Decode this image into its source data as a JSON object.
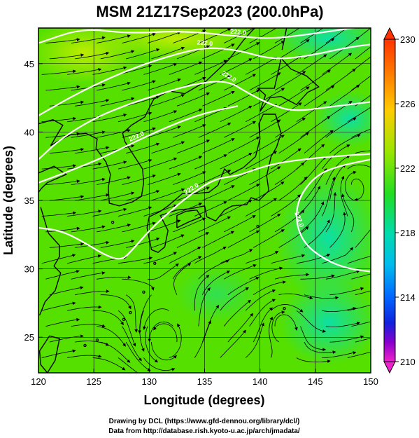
{
  "chart_data": {
    "type": "heatmap",
    "title": "MSM 21Z17Sep2023 (200.0hPa)",
    "xlabel": "Longitude (degrees)",
    "ylabel": "Latitude  (degrees)",
    "xlim": [
      120,
      150
    ],
    "ylim": [
      22.4,
      47.6
    ],
    "xticks": [
      "120",
      "125",
      "130",
      "135",
      "140",
      "145",
      "150"
    ],
    "xtick_values": [
      120,
      125,
      130,
      135,
      140,
      145,
      150
    ],
    "yticks": [
      "25",
      "30",
      "35",
      "40",
      "45"
    ],
    "ytick_values": [
      25,
      30,
      35,
      40,
      45
    ],
    "colorbar": {
      "min": 210,
      "max": 230,
      "ticks": [
        "230",
        "226",
        "222",
        "218",
        "214",
        "210"
      ],
      "tick_values": [
        230,
        226,
        222,
        218,
        214,
        210
      ]
    },
    "contours": [
      {
        "label": "222.0",
        "points": [
          [
            120,
            46.5
          ],
          [
            124,
            47.6
          ],
          [
            128,
            47.2
          ],
          [
            133,
            47.4
          ],
          [
            138,
            47.0
          ],
          [
            141,
            46.8
          ],
          [
            145,
            47.2
          ],
          [
            150,
            47.8
          ]
        ]
      },
      {
        "label": "222.0",
        "points": [
          [
            120,
            41.2
          ],
          [
            123,
            42.6
          ],
          [
            126,
            43.8
          ],
          [
            129,
            44.8
          ],
          [
            132,
            45.6
          ],
          [
            135,
            46.2
          ],
          [
            138,
            46.0
          ],
          [
            141,
            45.3
          ],
          [
            144,
            45.5
          ],
          [
            148,
            46.2
          ],
          [
            150,
            46.4
          ]
        ]
      },
      {
        "label": "222.0",
        "points": [
          [
            120,
            38.0
          ],
          [
            122,
            39.5
          ],
          [
            125,
            41.0
          ],
          [
            128,
            42.0
          ],
          [
            131,
            42.8
          ],
          [
            134,
            43.5
          ],
          [
            137,
            43.8
          ],
          [
            139,
            42.8
          ],
          [
            141,
            42.0
          ],
          [
            143,
            41.5
          ],
          [
            146,
            41.8
          ],
          [
            150,
            42.2
          ]
        ]
      },
      {
        "label": "222.0",
        "points": [
          [
            120,
            36.3
          ],
          [
            123,
            37.2
          ],
          [
            126,
            38.2
          ],
          [
            129,
            39.4
          ],
          [
            132,
            40.5
          ],
          [
            135,
            41.4
          ],
          [
            138,
            41.9
          ]
        ]
      },
      {
        "label": "222.0",
        "points": [
          [
            120,
            33.0
          ],
          [
            122,
            32.8
          ],
          [
            124,
            32.0
          ],
          [
            126,
            31.0
          ],
          [
            127.5,
            30.6
          ],
          [
            128.5,
            31.4
          ],
          [
            130,
            32.8
          ],
          [
            132,
            34.3
          ],
          [
            134,
            35.6
          ],
          [
            136,
            36.6
          ],
          [
            138,
            36.8
          ],
          [
            140,
            37.4
          ],
          [
            142,
            37.8
          ],
          [
            145,
            38.1
          ],
          [
            148,
            38.3
          ],
          [
            150,
            38.4
          ]
        ]
      },
      {
        "label": "222.0",
        "points": [
          [
            150,
            38.0
          ],
          [
            147,
            37.5
          ],
          [
            145,
            36.8
          ],
          [
            143.5,
            35.2
          ],
          [
            143.2,
            33.5
          ],
          [
            144,
            31.8
          ],
          [
            146,
            30.6
          ],
          [
            148,
            30.0
          ],
          [
            150,
            29.8
          ]
        ]
      }
    ]
  },
  "credits": {
    "line1": "Drawing by DCL (https://www.gfd-dennou.org/library/dcl/)",
    "line2": "Data from http://database.rish.kyoto-u.ac.jp/arch/jmadata/"
  },
  "colors": {
    "background_field": "#55e000",
    "colorbar_stops": [
      "#ff3300",
      "#ff8800",
      "#ffcc00",
      "#ccee00",
      "#55e000",
      "#00e070",
      "#00d4cc",
      "#00a0ff",
      "#0044ff",
      "#2222cc",
      "#aa00cc",
      "#ff33cc"
    ]
  }
}
